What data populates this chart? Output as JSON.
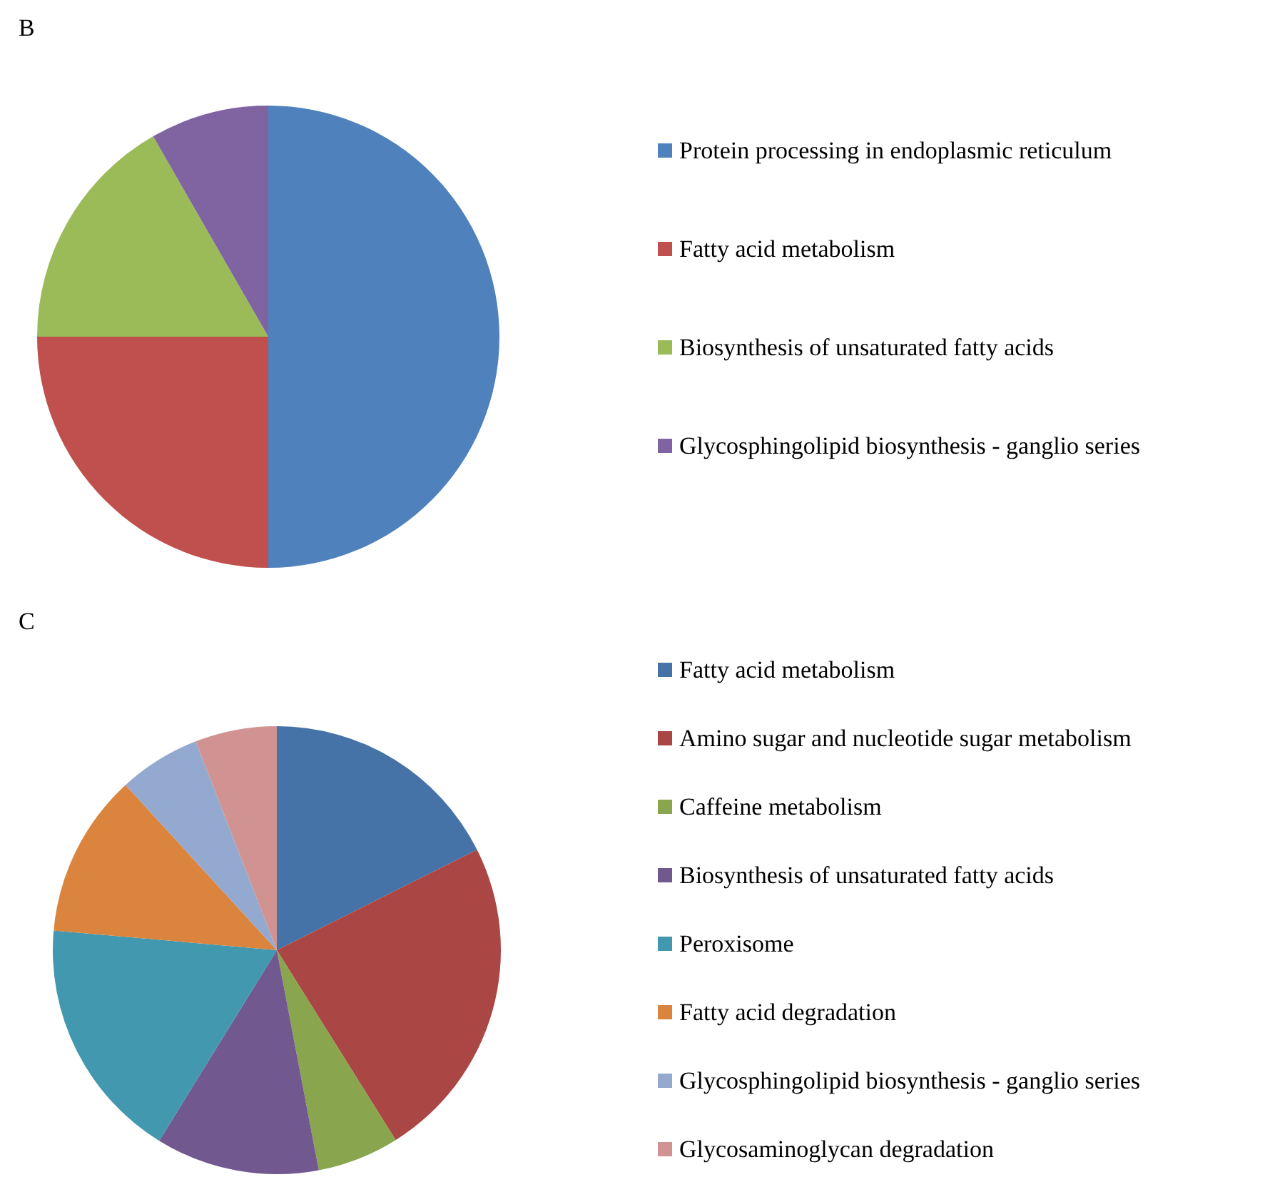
{
  "chart_data": [
    {
      "type": "pie",
      "title": "B",
      "legend": "right",
      "categories": [
        "Protein processing in endoplasmic reticulum",
        "Fatty acid metabolism",
        "Biosynthesis of unsaturated fatty acids",
        "Glycosphingolipid biosynthesis - ganglio series"
      ],
      "values": [
        50,
        25,
        16.7,
        8.3
      ],
      "colors": [
        "#4f81bd",
        "#c0504d",
        "#9bbb59",
        "#8064a2"
      ]
    },
    {
      "type": "pie",
      "title": "C",
      "legend": "right",
      "categories": [
        "Fatty acid metabolism",
        "Amino sugar and nucleotide sugar metabolism",
        "Caffeine metabolism",
        "Biosynthesis of unsaturated fatty acids",
        "Peroxisome",
        "Fatty acid degradation",
        "Glycosphingolipid biosynthesis - ganglio series",
        "Glycosaminoglycan degradation"
      ],
      "values": [
        17.6,
        23.5,
        5.9,
        11.8,
        17.6,
        11.8,
        5.9,
        5.9
      ],
      "colors": [
        "#4572a7",
        "#aa4643",
        "#89a54e",
        "#71588f",
        "#4198af",
        "#db843d",
        "#93a9cf",
        "#d19392"
      ]
    }
  ]
}
